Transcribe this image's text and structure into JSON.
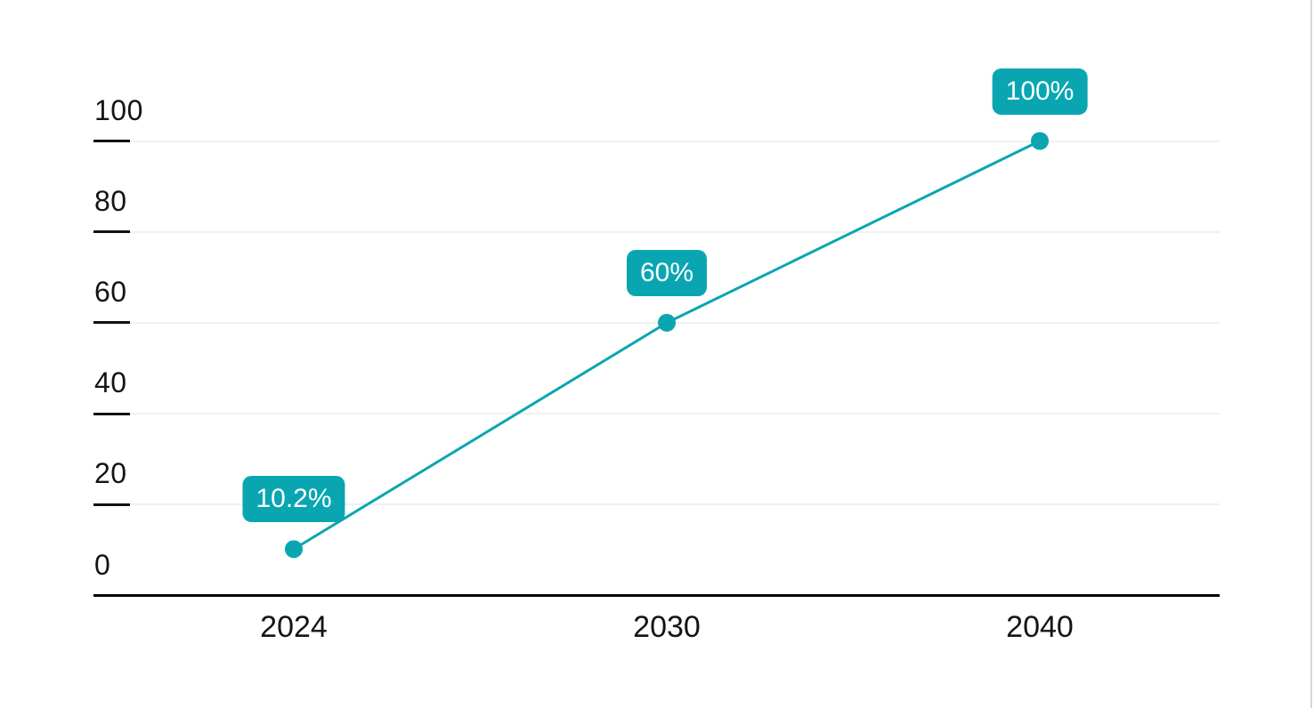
{
  "chart_data": {
    "type": "line",
    "categories": [
      "2024",
      "2030",
      "2040"
    ],
    "series": [
      {
        "name": "percent",
        "values": [
          10.2,
          60,
          100
        ]
      }
    ],
    "point_labels": [
      "10.2%",
      "60%",
      "100%"
    ],
    "yticks": [
      "0",
      "20",
      "40",
      "60",
      "80",
      "100"
    ],
    "ytick_values": [
      0,
      20,
      40,
      60,
      80,
      100
    ],
    "ylim": [
      0,
      100
    ],
    "title": "",
    "xlabel": "",
    "ylabel": "",
    "grid": true,
    "legend_position": "none",
    "colors": {
      "line": "#09a6b2",
      "point": "#09a6b2",
      "label_bg": "#09a6b2",
      "label_text": "#ffffff",
      "axis_line": "#000000",
      "tick_dash": "#111111",
      "gridline": "#f0f0f0",
      "tick_label": "#141414",
      "screen_edge": "#d8d8d8"
    }
  }
}
